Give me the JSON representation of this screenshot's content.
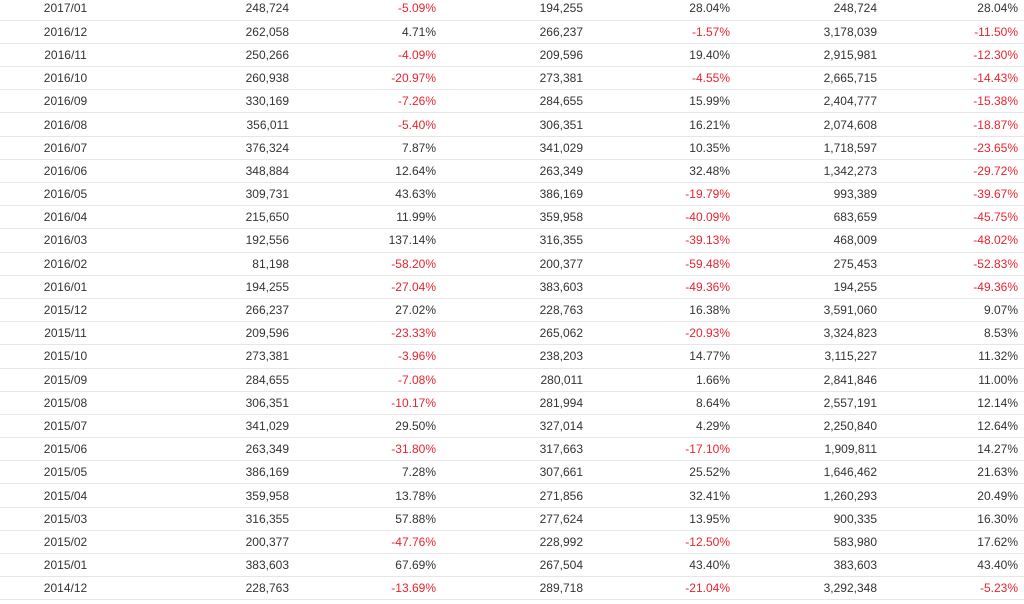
{
  "colors": {
    "negative": "#e8242f",
    "text": "#333333",
    "row_border": "#e6e6e6"
  },
  "table": {
    "rows": [
      {
        "month": "2017/01",
        "v1": "248,724",
        "p1": "-5.09%",
        "v2": "194,255",
        "p2": "28.04%",
        "v3": "248,724",
        "p3": "28.04%"
      },
      {
        "month": "2016/12",
        "v1": "262,058",
        "p1": "4.71%",
        "v2": "266,237",
        "p2": "-1.57%",
        "v3": "3,178,039",
        "p3": "-11.50%"
      },
      {
        "month": "2016/11",
        "v1": "250,266",
        "p1": "-4.09%",
        "v2": "209,596",
        "p2": "19.40%",
        "v3": "2,915,981",
        "p3": "-12.30%"
      },
      {
        "month": "2016/10",
        "v1": "260,938",
        "p1": "-20.97%",
        "v2": "273,381",
        "p2": "-4.55%",
        "v3": "2,665,715",
        "p3": "-14.43%"
      },
      {
        "month": "2016/09",
        "v1": "330,169",
        "p1": "-7.26%",
        "v2": "284,655",
        "p2": "15.99%",
        "v3": "2,404,777",
        "p3": "-15.38%"
      },
      {
        "month": "2016/08",
        "v1": "356,011",
        "p1": "-5.40%",
        "v2": "306,351",
        "p2": "16.21%",
        "v3": "2,074,608",
        "p3": "-18.87%"
      },
      {
        "month": "2016/07",
        "v1": "376,324",
        "p1": "7.87%",
        "v2": "341,029",
        "p2": "10.35%",
        "v3": "1,718,597",
        "p3": "-23.65%"
      },
      {
        "month": "2016/06",
        "v1": "348,884",
        "p1": "12.64%",
        "v2": "263,349",
        "p2": "32.48%",
        "v3": "1,342,273",
        "p3": "-29.72%"
      },
      {
        "month": "2016/05",
        "v1": "309,731",
        "p1": "43.63%",
        "v2": "386,169",
        "p2": "-19.79%",
        "v3": "993,389",
        "p3": "-39.67%"
      },
      {
        "month": "2016/04",
        "v1": "215,650",
        "p1": "11.99%",
        "v2": "359,958",
        "p2": "-40.09%",
        "v3": "683,659",
        "p3": "-45.75%"
      },
      {
        "month": "2016/03",
        "v1": "192,556",
        "p1": "137.14%",
        "v2": "316,355",
        "p2": "-39.13%",
        "v3": "468,009",
        "p3": "-48.02%"
      },
      {
        "month": "2016/02",
        "v1": "81,198",
        "p1": "-58.20%",
        "v2": "200,377",
        "p2": "-59.48%",
        "v3": "275,453",
        "p3": "-52.83%"
      },
      {
        "month": "2016/01",
        "v1": "194,255",
        "p1": "-27.04%",
        "v2": "383,603",
        "p2": "-49.36%",
        "v3": "194,255",
        "p3": "-49.36%"
      },
      {
        "month": "2015/12",
        "v1": "266,237",
        "p1": "27.02%",
        "v2": "228,763",
        "p2": "16.38%",
        "v3": "3,591,060",
        "p3": "9.07%"
      },
      {
        "month": "2015/11",
        "v1": "209,596",
        "p1": "-23.33%",
        "v2": "265,062",
        "p2": "-20.93%",
        "v3": "3,324,823",
        "p3": "8.53%"
      },
      {
        "month": "2015/10",
        "v1": "273,381",
        "p1": "-3.96%",
        "v2": "238,203",
        "p2": "14.77%",
        "v3": "3,115,227",
        "p3": "11.32%"
      },
      {
        "month": "2015/09",
        "v1": "284,655",
        "p1": "-7.08%",
        "v2": "280,011",
        "p2": "1.66%",
        "v3": "2,841,846",
        "p3": "11.00%"
      },
      {
        "month": "2015/08",
        "v1": "306,351",
        "p1": "-10.17%",
        "v2": "281,994",
        "p2": "8.64%",
        "v3": "2,557,191",
        "p3": "12.14%"
      },
      {
        "month": "2015/07",
        "v1": "341,029",
        "p1": "29.50%",
        "v2": "327,014",
        "p2": "4.29%",
        "v3": "2,250,840",
        "p3": "12.64%"
      },
      {
        "month": "2015/06",
        "v1": "263,349",
        "p1": "-31.80%",
        "v2": "317,663",
        "p2": "-17.10%",
        "v3": "1,909,811",
        "p3": "14.27%"
      },
      {
        "month": "2015/05",
        "v1": "386,169",
        "p1": "7.28%",
        "v2": "307,661",
        "p2": "25.52%",
        "v3": "1,646,462",
        "p3": "21.63%"
      },
      {
        "month": "2015/04",
        "v1": "359,958",
        "p1": "13.78%",
        "v2": "271,856",
        "p2": "32.41%",
        "v3": "1,260,293",
        "p3": "20.49%"
      },
      {
        "month": "2015/03",
        "v1": "316,355",
        "p1": "57.88%",
        "v2": "277,624",
        "p2": "13.95%",
        "v3": "900,335",
        "p3": "16.30%"
      },
      {
        "month": "2015/02",
        "v1": "200,377",
        "p1": "-47.76%",
        "v2": "228,992",
        "p2": "-12.50%",
        "v3": "583,980",
        "p3": "17.62%"
      },
      {
        "month": "2015/01",
        "v1": "383,603",
        "p1": "67.69%",
        "v2": "267,504",
        "p2": "43.40%",
        "v3": "383,603",
        "p3": "43.40%"
      },
      {
        "month": "2014/12",
        "v1": "228,763",
        "p1": "-13.69%",
        "v2": "289,718",
        "p2": "-21.04%",
        "v3": "3,292,348",
        "p3": "-5.23%"
      }
    ]
  }
}
